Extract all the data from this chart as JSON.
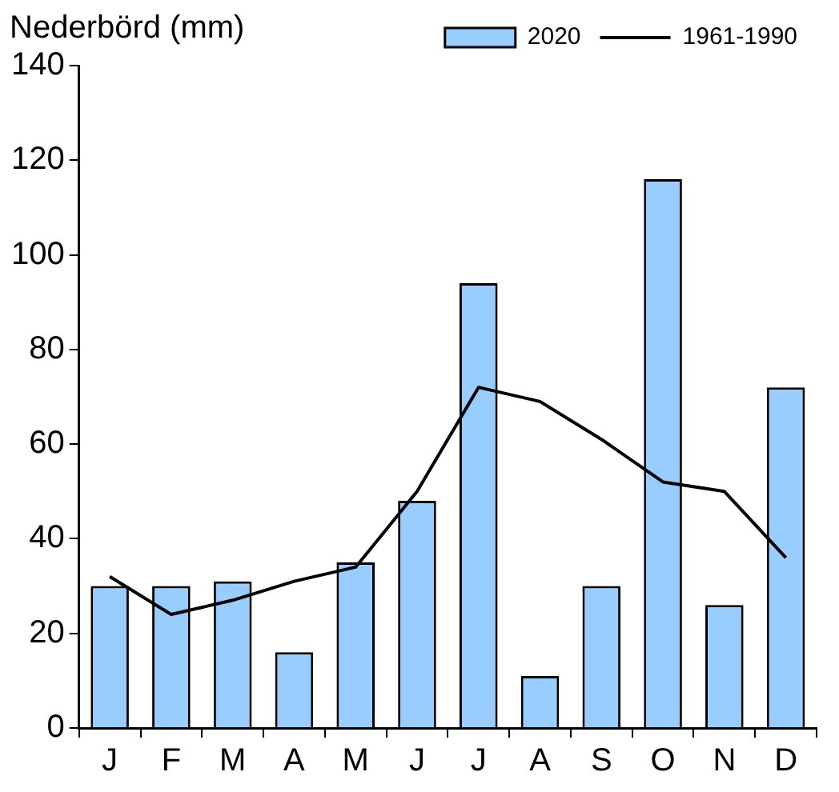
{
  "chart_data": {
    "type": "bar",
    "ylabel": "Nederbörd (mm)",
    "categories": [
      "J",
      "F",
      "M",
      "A",
      "M",
      "J",
      "J",
      "A",
      "S",
      "O",
      "N",
      "D"
    ],
    "series": [
      {
        "name": "2020",
        "color": "#99ccff",
        "values": [
          30,
          30,
          31,
          16,
          35,
          48,
          94,
          11,
          30,
          116,
          26,
          72
        ]
      },
      {
        "name": "1961-1990",
        "type": "line",
        "color": "#000000",
        "values": [
          32,
          24,
          27,
          31,
          34,
          50,
          72,
          69,
          61,
          52,
          50,
          36
        ]
      }
    ],
    "ylim": [
      0,
      140
    ],
    "yticks": [
      0,
      20,
      40,
      60,
      80,
      100,
      120,
      140
    ],
    "grid": false,
    "legend": "top right",
    "marker": "none",
    "line_style": "solid"
  }
}
